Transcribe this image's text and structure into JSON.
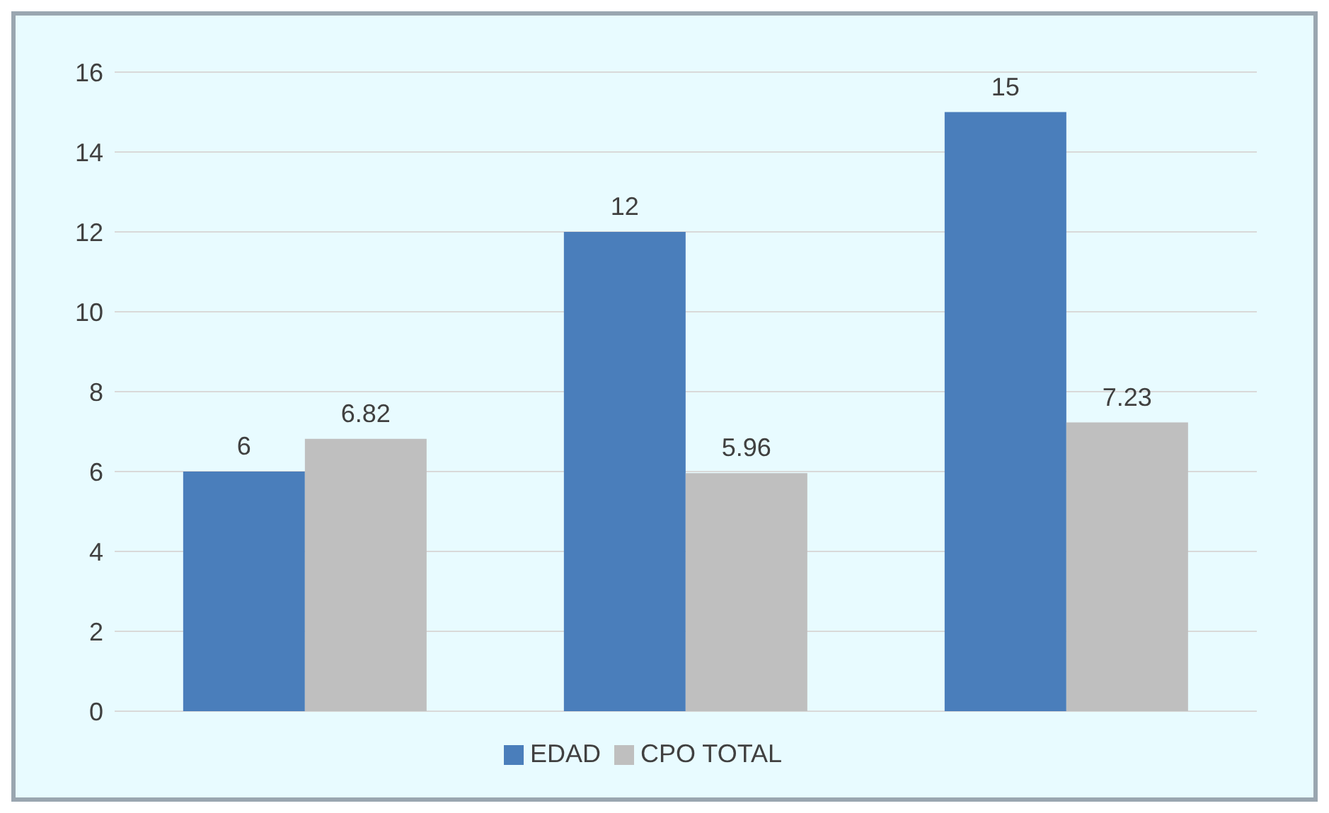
{
  "chart_data": {
    "type": "bar",
    "categories": [
      null,
      null,
      null
    ],
    "series": [
      {
        "name": "EDAD",
        "color": "#4a7ebb",
        "values": [
          6,
          12,
          15
        ]
      },
      {
        "name": "CPO TOTAL",
        "color": "#bfbfbf",
        "values": [
          6.82,
          5.96,
          7.23
        ]
      }
    ],
    "ylim": [
      0,
      16
    ],
    "yticks": [
      0,
      2,
      4,
      6,
      8,
      10,
      12,
      14,
      16
    ],
    "grid": "y",
    "legend": "bottom",
    "data_labels": true
  }
}
